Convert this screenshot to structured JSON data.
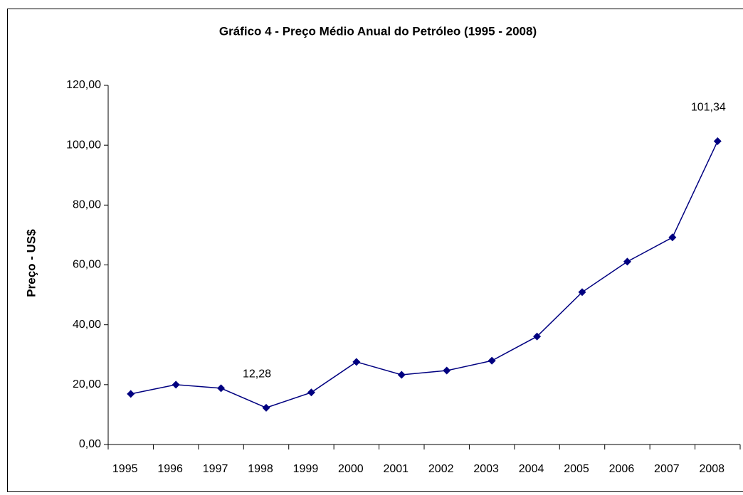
{
  "chart_data": {
    "type": "line",
    "title": "Gráfico 4 - Preço Médio Anual do Petróleo (1995 - 2008)",
    "y_label": "Preço - US$",
    "categories": [
      "1995",
      "1996",
      "1997",
      "1998",
      "1999",
      "2000",
      "2001",
      "2002",
      "2003",
      "2004",
      "2005",
      "2006",
      "2007",
      "2008"
    ],
    "series": [
      {
        "name": "Preço",
        "color": "#000080",
        "values": [
          16.9,
          20.0,
          18.8,
          12.28,
          17.4,
          27.6,
          23.3,
          24.7,
          28.0,
          36.1,
          50.9,
          61.1,
          69.2,
          101.34
        ],
        "value_labels": [
          null,
          null,
          null,
          "12,28",
          null,
          null,
          null,
          null,
          null,
          null,
          null,
          null,
          null,
          "101,34"
        ]
      }
    ],
    "ylim": [
      0,
      120
    ],
    "yticks": [
      {
        "value": 0,
        "label": "0,00"
      },
      {
        "value": 20,
        "label": "20,00"
      },
      {
        "value": 40,
        "label": "40,00"
      },
      {
        "value": 60,
        "label": "60,00"
      },
      {
        "value": 80,
        "label": "80,00"
      },
      {
        "value": 100,
        "label": "100,00"
      },
      {
        "value": 120,
        "label": "120,00"
      }
    ],
    "legend": false
  }
}
